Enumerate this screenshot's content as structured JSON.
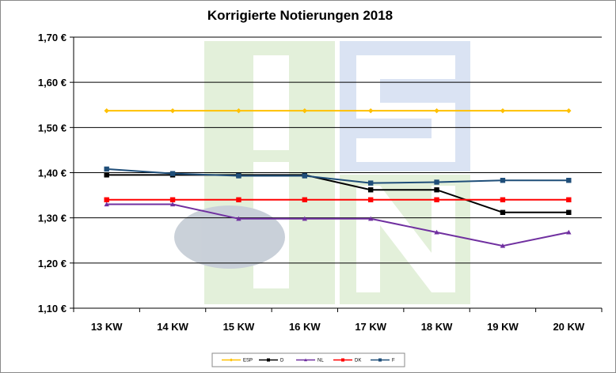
{
  "chart_data": {
    "type": "line",
    "title": "Korrigierte Notierungen 2018",
    "xlabel": "",
    "ylabel": "",
    "categories": [
      "13 KW",
      "14 KW",
      "15 KW",
      "16 KW",
      "17 KW",
      "18 KW",
      "19 KW",
      "20 KW"
    ],
    "ylim": [
      1.1,
      1.7
    ],
    "yticks": [
      1.1,
      1.2,
      1.3,
      1.4,
      1.5,
      1.6,
      1.7
    ],
    "ytick_labels": [
      "1,10 €",
      "1,20 €",
      "1,30 €",
      "1,40 €",
      "1,50 €",
      "1,60 €",
      "1,70 €"
    ],
    "grid": "horizontal",
    "legend_position": "bottom",
    "series": [
      {
        "name": "ESP",
        "color": "#FFC000",
        "marker": "diamond",
        "values": [
          1.537,
          1.537,
          1.537,
          1.537,
          1.537,
          1.537,
          1.537,
          1.537
        ]
      },
      {
        "name": "D",
        "color": "#000000",
        "marker": "square",
        "values": [
          1.395,
          1.395,
          1.395,
          1.395,
          1.362,
          1.362,
          1.312,
          1.312
        ]
      },
      {
        "name": "NL",
        "color": "#7030A0",
        "marker": "triangle",
        "values": [
          1.33,
          1.33,
          1.298,
          1.298,
          1.298,
          1.268,
          1.238,
          1.268
        ]
      },
      {
        "name": "DK",
        "color": "#FF0000",
        "marker": "square",
        "values": [
          1.34,
          1.34,
          1.34,
          1.34,
          1.34,
          1.34,
          1.34,
          1.34
        ]
      },
      {
        "name": "F",
        "color": "#1F4E79",
        "marker": "square",
        "values": [
          1.408,
          1.398,
          1.393,
          1.393,
          1.377,
          1.379,
          1.383,
          1.383
        ]
      }
    ]
  }
}
